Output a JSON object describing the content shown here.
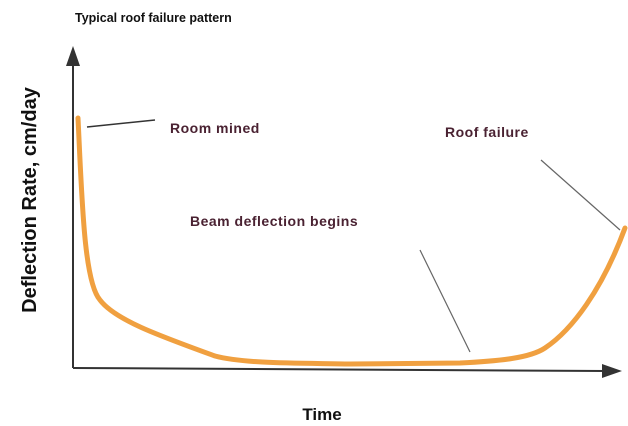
{
  "title": "Typical roof failure pattern",
  "y_axis_label": "Deflection Rate, cm/day",
  "x_axis_label": "Time",
  "annotations": [
    "Room mined",
    "Roof failure",
    "Beam deflection begins"
  ]
}
